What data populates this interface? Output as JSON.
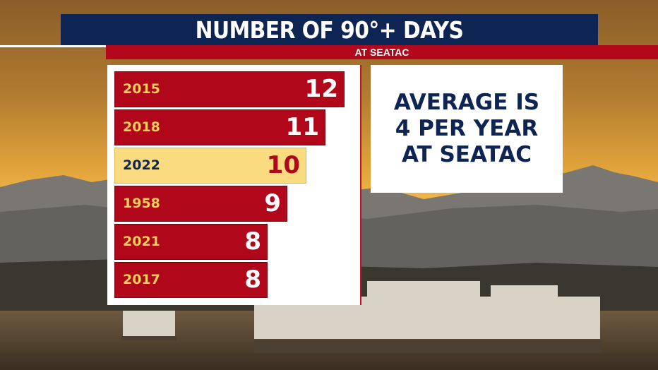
{
  "header": {
    "title": "NUMBER OF 90°+ DAYS",
    "subtitle": "AT SEATAC"
  },
  "note": {
    "lines": [
      "AVERAGE IS",
      "4 PER YEAR",
      "AT SEATAC"
    ]
  },
  "colors": {
    "navy": "#0e2452",
    "red": "#b0071a",
    "highlight": "#fbdb7f",
    "year_text": "#f6cf5a"
  },
  "chart_data": {
    "type": "bar",
    "orientation": "horizontal",
    "categories": [
      "2015",
      "2018",
      "2022",
      "1958",
      "2021",
      "2017"
    ],
    "values": [
      12,
      11,
      10,
      9,
      8,
      8
    ],
    "highlighted_category": "2022",
    "title": "NUMBER OF 90°+ DAYS",
    "subtitle": "AT SEATAC",
    "xlim": [
      0,
      12
    ],
    "grid": false
  }
}
